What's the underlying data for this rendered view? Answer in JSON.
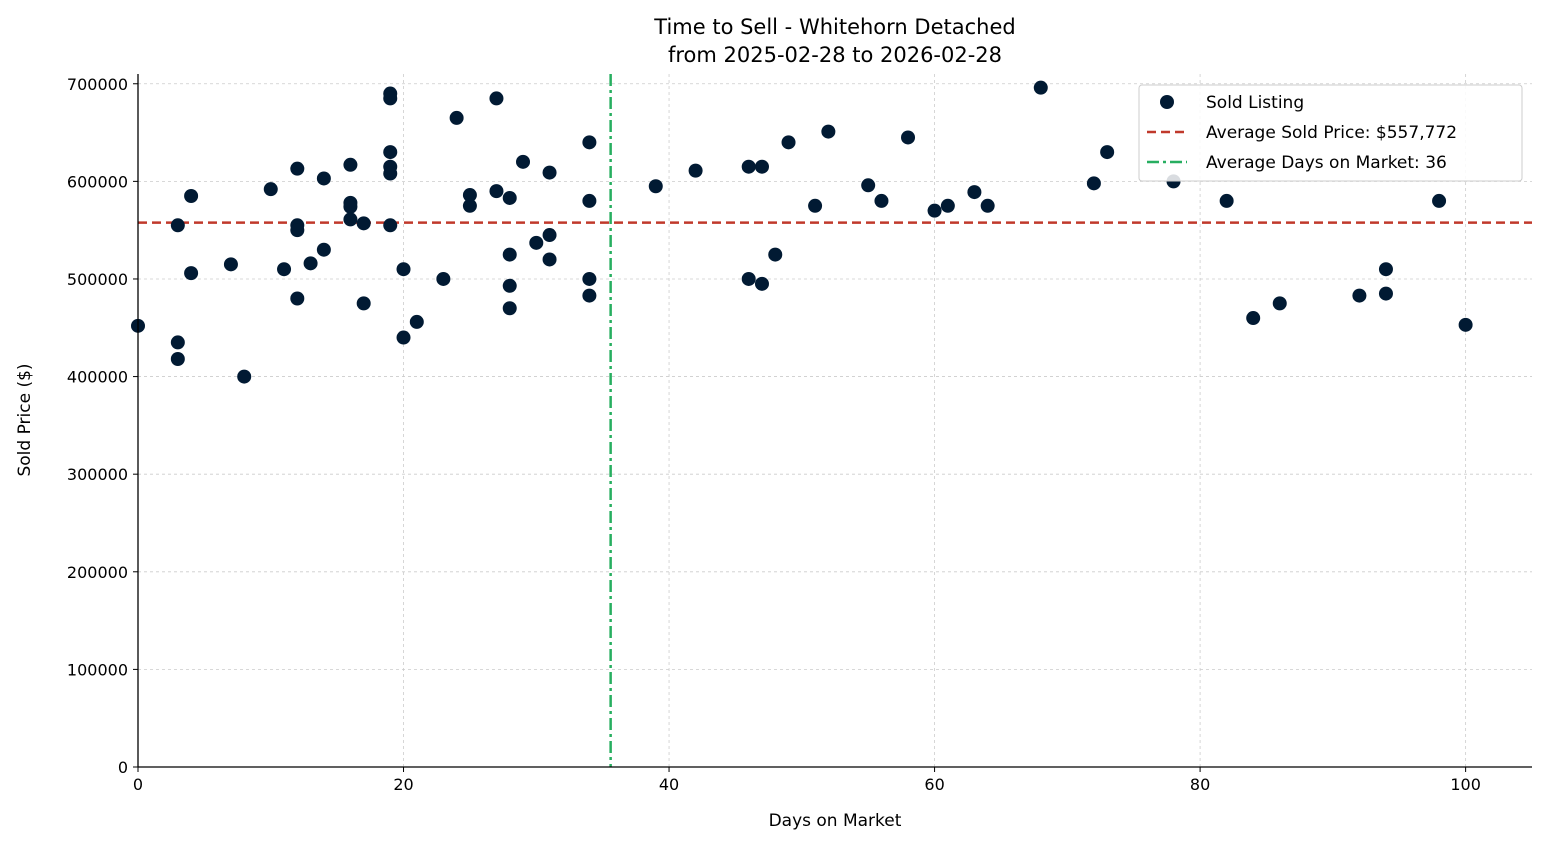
{
  "chart_data": {
    "type": "scatter",
    "title": "Time to Sell - Whitehorn Detached",
    "subtitle": "from 2025-02-28 to 2026-02-28",
    "xlabel": "Days on Market",
    "ylabel": "Sold Price ($)",
    "xlim": [
      0,
      105
    ],
    "ylim": [
      0,
      710000
    ],
    "xticks": [
      0,
      20,
      40,
      60,
      80,
      100
    ],
    "yticks": [
      0,
      100000,
      200000,
      300000,
      400000,
      500000,
      600000,
      700000
    ],
    "grid": true,
    "legend_position": "top-right",
    "colors": {
      "points": "#011a33",
      "avg_price": "#c0392b",
      "avg_days": "#27ae60"
    },
    "series": [
      {
        "name": "Sold Listing",
        "x": [
          0,
          3,
          3,
          3,
          4,
          4,
          7,
          8,
          10,
          11,
          12,
          12,
          12,
          12,
          13,
          14,
          14,
          16,
          16,
          16,
          16,
          17,
          17,
          19,
          19,
          19,
          19,
          19,
          19,
          20,
          20,
          21,
          23,
          24,
          25,
          25,
          27,
          27,
          28,
          28,
          28,
          28,
          29,
          30,
          31,
          31,
          31,
          34,
          34,
          34,
          34,
          39,
          42,
          46,
          46,
          47,
          47,
          48,
          49,
          51,
          52,
          55,
          56,
          58,
          60,
          61,
          63,
          64,
          68,
          72,
          73,
          78,
          82,
          84,
          86,
          92,
          94,
          94,
          98,
          100
        ],
        "y": [
          452000,
          555000,
          435000,
          418000,
          585000,
          506000,
          515000,
          400000,
          592000,
          510000,
          613000,
          555000,
          550000,
          480000,
          516000,
          603000,
          530000,
          617000,
          578000,
          574000,
          561000,
          557000,
          475000,
          690000,
          685000,
          630000,
          615000,
          608000,
          555000,
          510000,
          440000,
          456000,
          500000,
          665000,
          586000,
          575000,
          685000,
          590000,
          583000,
          525000,
          493000,
          470000,
          620000,
          537000,
          609000,
          545000,
          520000,
          640000,
          580000,
          500000,
          483000,
          595000,
          611000,
          615000,
          500000,
          615000,
          495000,
          525000,
          640000,
          575000,
          651000,
          596000,
          580000,
          645000,
          570000,
          575000,
          589000,
          575000,
          696000,
          598000,
          630000,
          600000,
          580000,
          460000,
          475000,
          483000,
          510000,
          485000,
          580000,
          453000
        ]
      }
    ],
    "reference_lines": {
      "avg_price": {
        "name": "Average Sold Price: $557,772",
        "value": 557772
      },
      "avg_days": {
        "name": "Average Days on Market: 36",
        "value": 35.6
      }
    }
  }
}
